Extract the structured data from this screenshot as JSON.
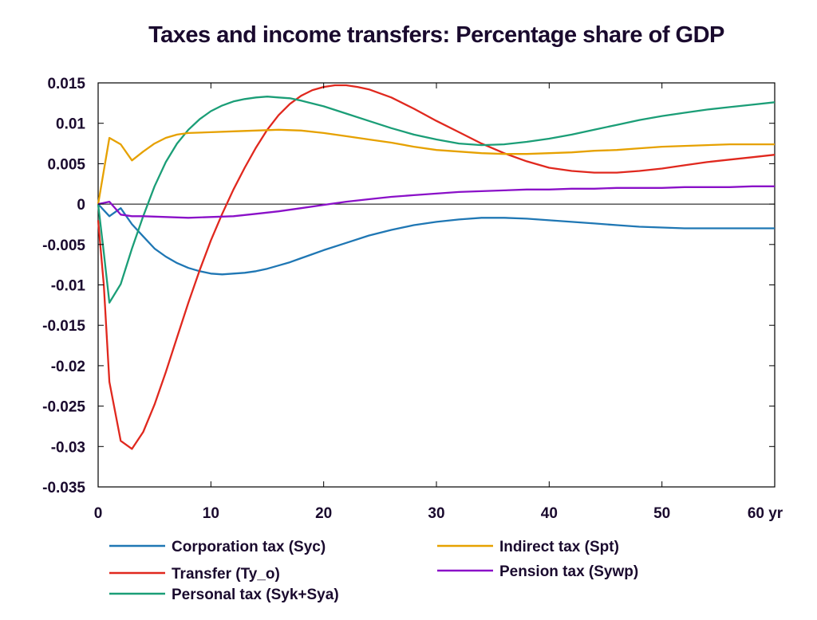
{
  "chart_data": {
    "type": "line",
    "title": "Taxes and income transfers: Percentage share of GDP",
    "xlabel": "",
    "ylabel": "",
    "x_unit_label": "yr",
    "xlim": [
      0,
      60
    ],
    "ylim": [
      -0.035,
      0.015
    ],
    "x_ticks": [
      0,
      10,
      20,
      30,
      40,
      50,
      60
    ],
    "y_ticks": [
      0.015,
      0.01,
      0.005,
      0,
      -0.005,
      -0.01,
      -0.015,
      -0.02,
      -0.025,
      -0.03,
      -0.035
    ],
    "y_tick_labels": [
      "0.015",
      "0.01",
      "0.005",
      "0",
      "-0.005",
      "-0.01",
      "-0.015",
      "-0.02",
      "-0.025",
      "-0.03",
      "-0.035"
    ],
    "x_tick_labels": [
      "0",
      "10",
      "20",
      "30",
      "40",
      "50",
      "60 yr"
    ],
    "grid": false,
    "legend_position": "bottom",
    "series": [
      {
        "name": "Corporation tax (Syc)",
        "color": "#1f77b4",
        "points": [
          [
            0,
            0
          ],
          [
            1,
            -0.0015
          ],
          [
            2,
            -0.0005
          ],
          [
            3,
            -0.0025
          ],
          [
            4,
            -0.004
          ],
          [
            5,
            -0.0055
          ],
          [
            6,
            -0.0065
          ],
          [
            7,
            -0.0073
          ],
          [
            8,
            -0.0079
          ],
          [
            9,
            -0.0083
          ],
          [
            10,
            -0.0086
          ],
          [
            11,
            -0.0087
          ],
          [
            12,
            -0.0086
          ],
          [
            13,
            -0.0085
          ],
          [
            14,
            -0.0083
          ],
          [
            15,
            -0.008
          ],
          [
            16,
            -0.0076
          ],
          [
            17,
            -0.0072
          ],
          [
            18,
            -0.0067
          ],
          [
            19,
            -0.0062
          ],
          [
            20,
            -0.0057
          ],
          [
            22,
            -0.0048
          ],
          [
            24,
            -0.0039
          ],
          [
            26,
            -0.0032
          ],
          [
            28,
            -0.0026
          ],
          [
            30,
            -0.0022
          ],
          [
            32,
            -0.0019
          ],
          [
            34,
            -0.0017
          ],
          [
            36,
            -0.0017
          ],
          [
            38,
            -0.0018
          ],
          [
            40,
            -0.002
          ],
          [
            42,
            -0.0022
          ],
          [
            44,
            -0.0024
          ],
          [
            46,
            -0.0026
          ],
          [
            48,
            -0.0028
          ],
          [
            50,
            -0.0029
          ],
          [
            52,
            -0.003
          ],
          [
            54,
            -0.003
          ],
          [
            56,
            -0.003
          ],
          [
            58,
            -0.003
          ],
          [
            60,
            -0.003
          ]
        ]
      },
      {
        "name": "Transfer (Ty_o)",
        "color": "#e0281e",
        "points": [
          [
            0,
            -0.002
          ],
          [
            0.5,
            -0.01
          ],
          [
            1,
            -0.022
          ],
          [
            2,
            -0.0293
          ],
          [
            3,
            -0.0303
          ],
          [
            4,
            -0.0282
          ],
          [
            5,
            -0.0248
          ],
          [
            6,
            -0.0208
          ],
          [
            7,
            -0.0165
          ],
          [
            8,
            -0.0122
          ],
          [
            9,
            -0.0082
          ],
          [
            10,
            -0.0045
          ],
          [
            11,
            -0.0012
          ],
          [
            12,
            0.0018
          ],
          [
            13,
            0.0045
          ],
          [
            14,
            0.007
          ],
          [
            15,
            0.0092
          ],
          [
            16,
            0.011
          ],
          [
            17,
            0.0124
          ],
          [
            18,
            0.0134
          ],
          [
            19,
            0.0141
          ],
          [
            20,
            0.0145
          ],
          [
            21,
            0.0147
          ],
          [
            22,
            0.0147
          ],
          [
            23,
            0.0145
          ],
          [
            24,
            0.0142
          ],
          [
            26,
            0.0132
          ],
          [
            28,
            0.0118
          ],
          [
            30,
            0.0103
          ],
          [
            32,
            0.0089
          ],
          [
            34,
            0.0075
          ],
          [
            36,
            0.0063
          ],
          [
            38,
            0.0053
          ],
          [
            40,
            0.0045
          ],
          [
            42,
            0.0041
          ],
          [
            44,
            0.0039
          ],
          [
            46,
            0.0039
          ],
          [
            48,
            0.0041
          ],
          [
            50,
            0.0044
          ],
          [
            52,
            0.0048
          ],
          [
            54,
            0.0052
          ],
          [
            56,
            0.0055
          ],
          [
            58,
            0.0058
          ],
          [
            60,
            0.0061
          ]
        ]
      },
      {
        "name": "Personal tax (Syk+Sya)",
        "color": "#1b9e77",
        "points": [
          [
            0,
            0
          ],
          [
            0.5,
            -0.006
          ],
          [
            1,
            -0.0122
          ],
          [
            2,
            -0.0099
          ],
          [
            3,
            -0.0055
          ],
          [
            4,
            -0.0015
          ],
          [
            5,
            0.0022
          ],
          [
            6,
            0.0052
          ],
          [
            7,
            0.0075
          ],
          [
            8,
            0.0092
          ],
          [
            9,
            0.0105
          ],
          [
            10,
            0.0115
          ],
          [
            11,
            0.0122
          ],
          [
            12,
            0.0127
          ],
          [
            13,
            0.013
          ],
          [
            14,
            0.0132
          ],
          [
            15,
            0.0133
          ],
          [
            16,
            0.0132
          ],
          [
            17,
            0.0131
          ],
          [
            18,
            0.0128
          ],
          [
            20,
            0.0121
          ],
          [
            22,
            0.0112
          ],
          [
            24,
            0.0103
          ],
          [
            26,
            0.0094
          ],
          [
            28,
            0.0086
          ],
          [
            30,
            0.008
          ],
          [
            32,
            0.0075
          ],
          [
            34,
            0.0073
          ],
          [
            36,
            0.0074
          ],
          [
            38,
            0.0077
          ],
          [
            40,
            0.0081
          ],
          [
            42,
            0.0086
          ],
          [
            44,
            0.0092
          ],
          [
            46,
            0.0098
          ],
          [
            48,
            0.0104
          ],
          [
            50,
            0.0109
          ],
          [
            52,
            0.0113
          ],
          [
            54,
            0.0117
          ],
          [
            56,
            0.012
          ],
          [
            58,
            0.0123
          ],
          [
            60,
            0.0126
          ]
        ]
      },
      {
        "name": "Indirect tax (Spt)",
        "color": "#e6a100",
        "points": [
          [
            0,
            0
          ],
          [
            1,
            0.0082
          ],
          [
            2,
            0.0074
          ],
          [
            3,
            0.0054
          ],
          [
            4,
            0.0065
          ],
          [
            5,
            0.0075
          ],
          [
            6,
            0.0082
          ],
          [
            7,
            0.0086
          ],
          [
            8,
            0.0088
          ],
          [
            10,
            0.0089
          ],
          [
            12,
            0.009
          ],
          [
            14,
            0.0091
          ],
          [
            16,
            0.0092
          ],
          [
            18,
            0.0091
          ],
          [
            20,
            0.0088
          ],
          [
            22,
            0.0084
          ],
          [
            24,
            0.008
          ],
          [
            26,
            0.0076
          ],
          [
            28,
            0.0071
          ],
          [
            30,
            0.0067
          ],
          [
            32,
            0.0065
          ],
          [
            34,
            0.0063
          ],
          [
            36,
            0.0062
          ],
          [
            38,
            0.0062
          ],
          [
            40,
            0.0063
          ],
          [
            42,
            0.0064
          ],
          [
            44,
            0.0066
          ],
          [
            46,
            0.0067
          ],
          [
            48,
            0.0069
          ],
          [
            50,
            0.0071
          ],
          [
            52,
            0.0072
          ],
          [
            54,
            0.0073
          ],
          [
            56,
            0.0074
          ],
          [
            58,
            0.0074
          ],
          [
            60,
            0.0074
          ]
        ]
      },
      {
        "name": "Pension tax (Sywp)",
        "color": "#8a10c8",
        "points": [
          [
            0,
            0
          ],
          [
            1,
            0.0003
          ],
          [
            2,
            -0.0013
          ],
          [
            3,
            -0.0015
          ],
          [
            4,
            -0.0015
          ],
          [
            6,
            -0.0016
          ],
          [
            8,
            -0.0017
          ],
          [
            10,
            -0.0016
          ],
          [
            12,
            -0.0015
          ],
          [
            14,
            -0.0012
          ],
          [
            16,
            -0.0009
          ],
          [
            18,
            -0.0005
          ],
          [
            20,
            -0.0001
          ],
          [
            22,
            0.0003
          ],
          [
            24,
            0.0006
          ],
          [
            26,
            0.0009
          ],
          [
            28,
            0.0011
          ],
          [
            30,
            0.0013
          ],
          [
            32,
            0.0015
          ],
          [
            34,
            0.0016
          ],
          [
            36,
            0.0017
          ],
          [
            38,
            0.0018
          ],
          [
            40,
            0.0018
          ],
          [
            42,
            0.0019
          ],
          [
            44,
            0.0019
          ],
          [
            46,
            0.002
          ],
          [
            48,
            0.002
          ],
          [
            50,
            0.002
          ],
          [
            52,
            0.0021
          ],
          [
            54,
            0.0021
          ],
          [
            56,
            0.0021
          ],
          [
            58,
            0.0022
          ],
          [
            60,
            0.0022
          ]
        ]
      }
    ]
  }
}
